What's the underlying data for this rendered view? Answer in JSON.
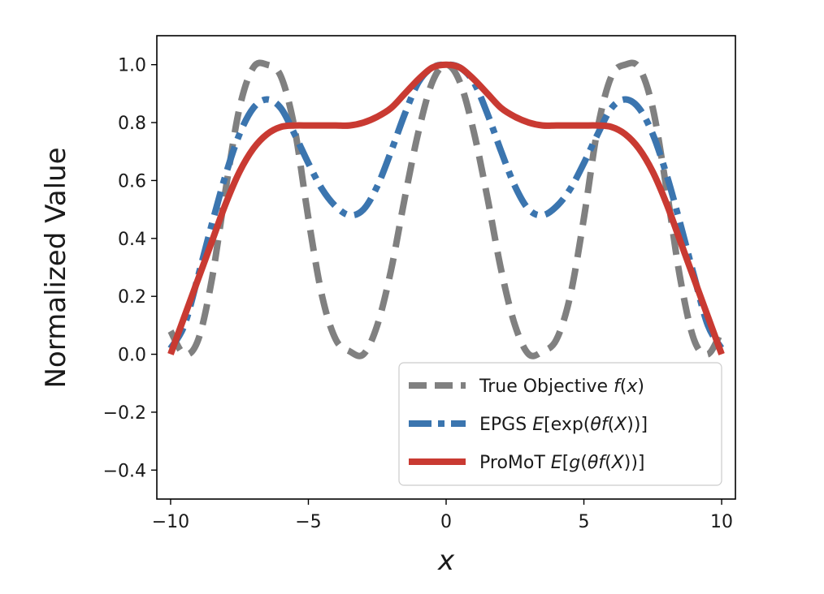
{
  "chart_data": {
    "type": "line",
    "title": "",
    "xlabel": "x",
    "ylabel": "Normalized Value",
    "xlim": [
      -10.5,
      10.5
    ],
    "ylim": [
      -0.5,
      1.1
    ],
    "x_ticks": [
      -10,
      -5,
      0,
      5,
      10
    ],
    "x_tick_labels": [
      "−10",
      "−5",
      "0",
      "5",
      "10"
    ],
    "y_ticks": [
      -0.4,
      -0.2,
      0.0,
      0.2,
      0.4,
      0.6,
      0.8,
      1.0
    ],
    "y_tick_labels": [
      "−0.4",
      "−0.2",
      "0.0",
      "0.2",
      "0.4",
      "0.6",
      "0.8",
      "1.0"
    ],
    "grid": false,
    "legend_position": "lower-right",
    "x": [
      -10,
      -9.5,
      -9,
      -8.5,
      -8,
      -7.5,
      -7,
      -6.5,
      -6,
      -5.5,
      -5,
      -4.5,
      -4,
      -3.5,
      -3,
      -2.5,
      -2,
      -1.5,
      -1,
      -0.5,
      0,
      0.5,
      1,
      1.5,
      2,
      2.5,
      3,
      3.5,
      4,
      4.5,
      5,
      5.5,
      6,
      6.5,
      7,
      7.5,
      8,
      8.5,
      9,
      9.5,
      10
    ],
    "series": [
      {
        "name": "True Objective f(x)",
        "legend_parts": [
          {
            "t": "True Objective ",
            "i": false
          },
          {
            "t": "f",
            "i": true
          },
          {
            "t": "(",
            "i": false
          },
          {
            "t": "x",
            "i": true
          },
          {
            "t": ")",
            "i": false
          }
        ],
        "color": "#808080",
        "style": "dashed",
        "values": [
          0.08,
          0.0,
          0.05,
          0.26,
          0.57,
          0.85,
          0.99,
          1.0,
          0.96,
          0.78,
          0.47,
          0.2,
          0.05,
          0.01,
          0.0,
          0.1,
          0.29,
          0.54,
          0.77,
          0.94,
          1.0,
          0.94,
          0.77,
          0.54,
          0.29,
          0.1,
          0.0,
          0.01,
          0.05,
          0.2,
          0.47,
          0.78,
          0.96,
          1.0,
          0.99,
          0.85,
          0.57,
          0.26,
          0.05,
          0.0,
          0.08
        ]
      },
      {
        "name": "EPGS E[exp(θf(X))]",
        "legend_parts": [
          {
            "t": "EPGS ",
            "i": false
          },
          {
            "t": "E",
            "i": true
          },
          {
            "t": "[exp(",
            "i": false
          },
          {
            "t": "θf",
            "i": true
          },
          {
            "t": "(",
            "i": false
          },
          {
            "t": "X",
            "i": true
          },
          {
            "t": "))]",
            "i": false
          }
        ],
        "color": "#3b75af",
        "style": "dashdot",
        "values": [
          0.02,
          0.1,
          0.27,
          0.45,
          0.62,
          0.76,
          0.85,
          0.88,
          0.85,
          0.76,
          0.66,
          0.57,
          0.51,
          0.48,
          0.5,
          0.58,
          0.7,
          0.83,
          0.94,
          0.99,
          1.0,
          0.99,
          0.94,
          0.83,
          0.7,
          0.58,
          0.5,
          0.48,
          0.51,
          0.57,
          0.66,
          0.76,
          0.85,
          0.88,
          0.85,
          0.76,
          0.62,
          0.45,
          0.27,
          0.1,
          0.02
        ]
      },
      {
        "name": "ProMoT E[g(θf(X))]",
        "legend_parts": [
          {
            "t": "ProMoT ",
            "i": false
          },
          {
            "t": "E",
            "i": true
          },
          {
            "t": "[",
            "i": false
          },
          {
            "t": "g",
            "i": true
          },
          {
            "t": "(",
            "i": false
          },
          {
            "t": "θf",
            "i": true
          },
          {
            "t": "(",
            "i": false
          },
          {
            "t": "X",
            "i": true
          },
          {
            "t": "))]",
            "i": false
          }
        ],
        "color": "#c93a32",
        "style": "solid",
        "values": [
          0.0,
          0.13,
          0.26,
          0.39,
          0.52,
          0.63,
          0.71,
          0.76,
          0.785,
          0.79,
          0.79,
          0.79,
          0.79,
          0.79,
          0.8,
          0.82,
          0.85,
          0.9,
          0.95,
          0.99,
          1.0,
          0.99,
          0.95,
          0.9,
          0.85,
          0.82,
          0.8,
          0.79,
          0.79,
          0.79,
          0.79,
          0.79,
          0.785,
          0.76,
          0.71,
          0.63,
          0.52,
          0.39,
          0.26,
          0.13,
          0.0
        ]
      }
    ]
  }
}
